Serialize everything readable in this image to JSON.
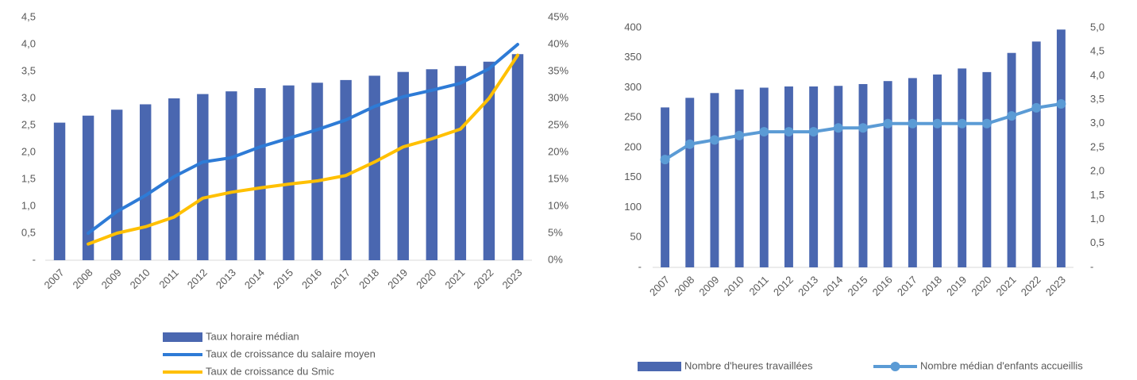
{
  "chart_data": [
    {
      "type": "combo",
      "categories": [
        "2007",
        "2008",
        "2009",
        "2010",
        "2011",
        "2012",
        "2013",
        "2014",
        "2015",
        "2016",
        "2017",
        "2018",
        "2019",
        "2020",
        "2021",
        "2022",
        "2023"
      ],
      "series": [
        {
          "name": "Taux horaire médian",
          "kind": "bar",
          "color": "#4a67b0",
          "values": [
            2.55,
            2.68,
            2.79,
            2.89,
            3.0,
            3.08,
            3.13,
            3.19,
            3.24,
            3.29,
            3.34,
            3.42,
            3.49,
            3.54,
            3.6,
            3.68,
            3.82
          ]
        },
        {
          "name": "Taux de croissance du salaire moyen",
          "kind": "line",
          "axis": "y2",
          "color": "#2e7bd6",
          "values": [
            null,
            5,
            9,
            12,
            15.5,
            18.2,
            19,
            21,
            22.6,
            24.2,
            26,
            28.5,
            30.3,
            31.5,
            32.8,
            35.5,
            40
          ]
        },
        {
          "name": "Taux de croissance du Smic",
          "kind": "line",
          "axis": "y2",
          "color": "#ffc000",
          "values": [
            null,
            3,
            5,
            6.2,
            8,
            11.5,
            12.6,
            13.4,
            14.1,
            14.7,
            15.7,
            18.2,
            21,
            22.5,
            24.3,
            30,
            38
          ]
        }
      ],
      "ylim": [
        0,
        4.5
      ],
      "yticks": [
        {
          "value": 0,
          "label": "-"
        },
        {
          "value": 0.5,
          "label": "0,5"
        },
        {
          "value": 1,
          "label": "1,0"
        },
        {
          "value": 1.5,
          "label": "1,5"
        },
        {
          "value": 2,
          "label": "2,0"
        },
        {
          "value": 2.5,
          "label": "2,5"
        },
        {
          "value": 3,
          "label": "3,0"
        },
        {
          "value": 3.5,
          "label": "3,5"
        },
        {
          "value": 4,
          "label": "4,0"
        },
        {
          "value": 4.5,
          "label": "4,5"
        }
      ],
      "y2lim": [
        0,
        45
      ],
      "y2ticks": [
        {
          "value": 0,
          "label": "0%"
        },
        {
          "value": 5,
          "label": "5%"
        },
        {
          "value": 10,
          "label": "10%"
        },
        {
          "value": 15,
          "label": "15%"
        },
        {
          "value": 20,
          "label": "20%"
        },
        {
          "value": 25,
          "label": "25%"
        },
        {
          "value": 30,
          "label": "30%"
        },
        {
          "value": 35,
          "label": "35%"
        },
        {
          "value": 40,
          "label": "40%"
        },
        {
          "value": 45,
          "label": "45%"
        }
      ],
      "grid": false
    },
    {
      "type": "combo",
      "categories": [
        "2007",
        "2008",
        "2009",
        "2010",
        "2011",
        "2012",
        "2013",
        "2014",
        "2015",
        "2016",
        "2017",
        "2018",
        "2019",
        "2020",
        "2021",
        "2022",
        "2023"
      ],
      "series": [
        {
          "name": "Nombre d'heures travaillées",
          "kind": "bar",
          "color": "#4a67b0",
          "values": [
            267,
            283,
            291,
            297,
            300,
            302,
            302,
            303,
            306,
            311,
            316,
            322,
            332,
            326,
            358,
            377,
            397
          ]
        },
        {
          "name": "Nombre médian d'enfants accueillis",
          "kind": "line",
          "axis": "y2",
          "marker": true,
          "color": "#5b9bd5",
          "values": [
            2.25,
            2.57,
            2.66,
            2.75,
            2.83,
            2.83,
            2.83,
            2.91,
            2.91,
            3.0,
            3.0,
            3.0,
            3.0,
            3.0,
            3.16,
            3.33,
            3.41
          ]
        }
      ],
      "ylim": [
        0,
        400
      ],
      "yticks": [
        {
          "value": 0,
          "label": "-"
        },
        50,
        100,
        150,
        200,
        250,
        300,
        350,
        400
      ],
      "y2lim": [
        0,
        5
      ],
      "y2ticks": [
        {
          "value": 0,
          "label": "-"
        },
        {
          "value": 0.5,
          "label": "0,5"
        },
        {
          "value": 1,
          "label": "1,0"
        },
        {
          "value": 1.5,
          "label": "1,5"
        },
        {
          "value": 2,
          "label": "2,0"
        },
        {
          "value": 2.5,
          "label": "2,5"
        },
        {
          "value": 3,
          "label": "3,0"
        },
        {
          "value": 3.5,
          "label": "3,5"
        },
        {
          "value": 4,
          "label": "4,0"
        },
        {
          "value": 4.5,
          "label": "4,5"
        },
        {
          "value": 5,
          "label": "5,0"
        }
      ],
      "grid": false
    }
  ]
}
